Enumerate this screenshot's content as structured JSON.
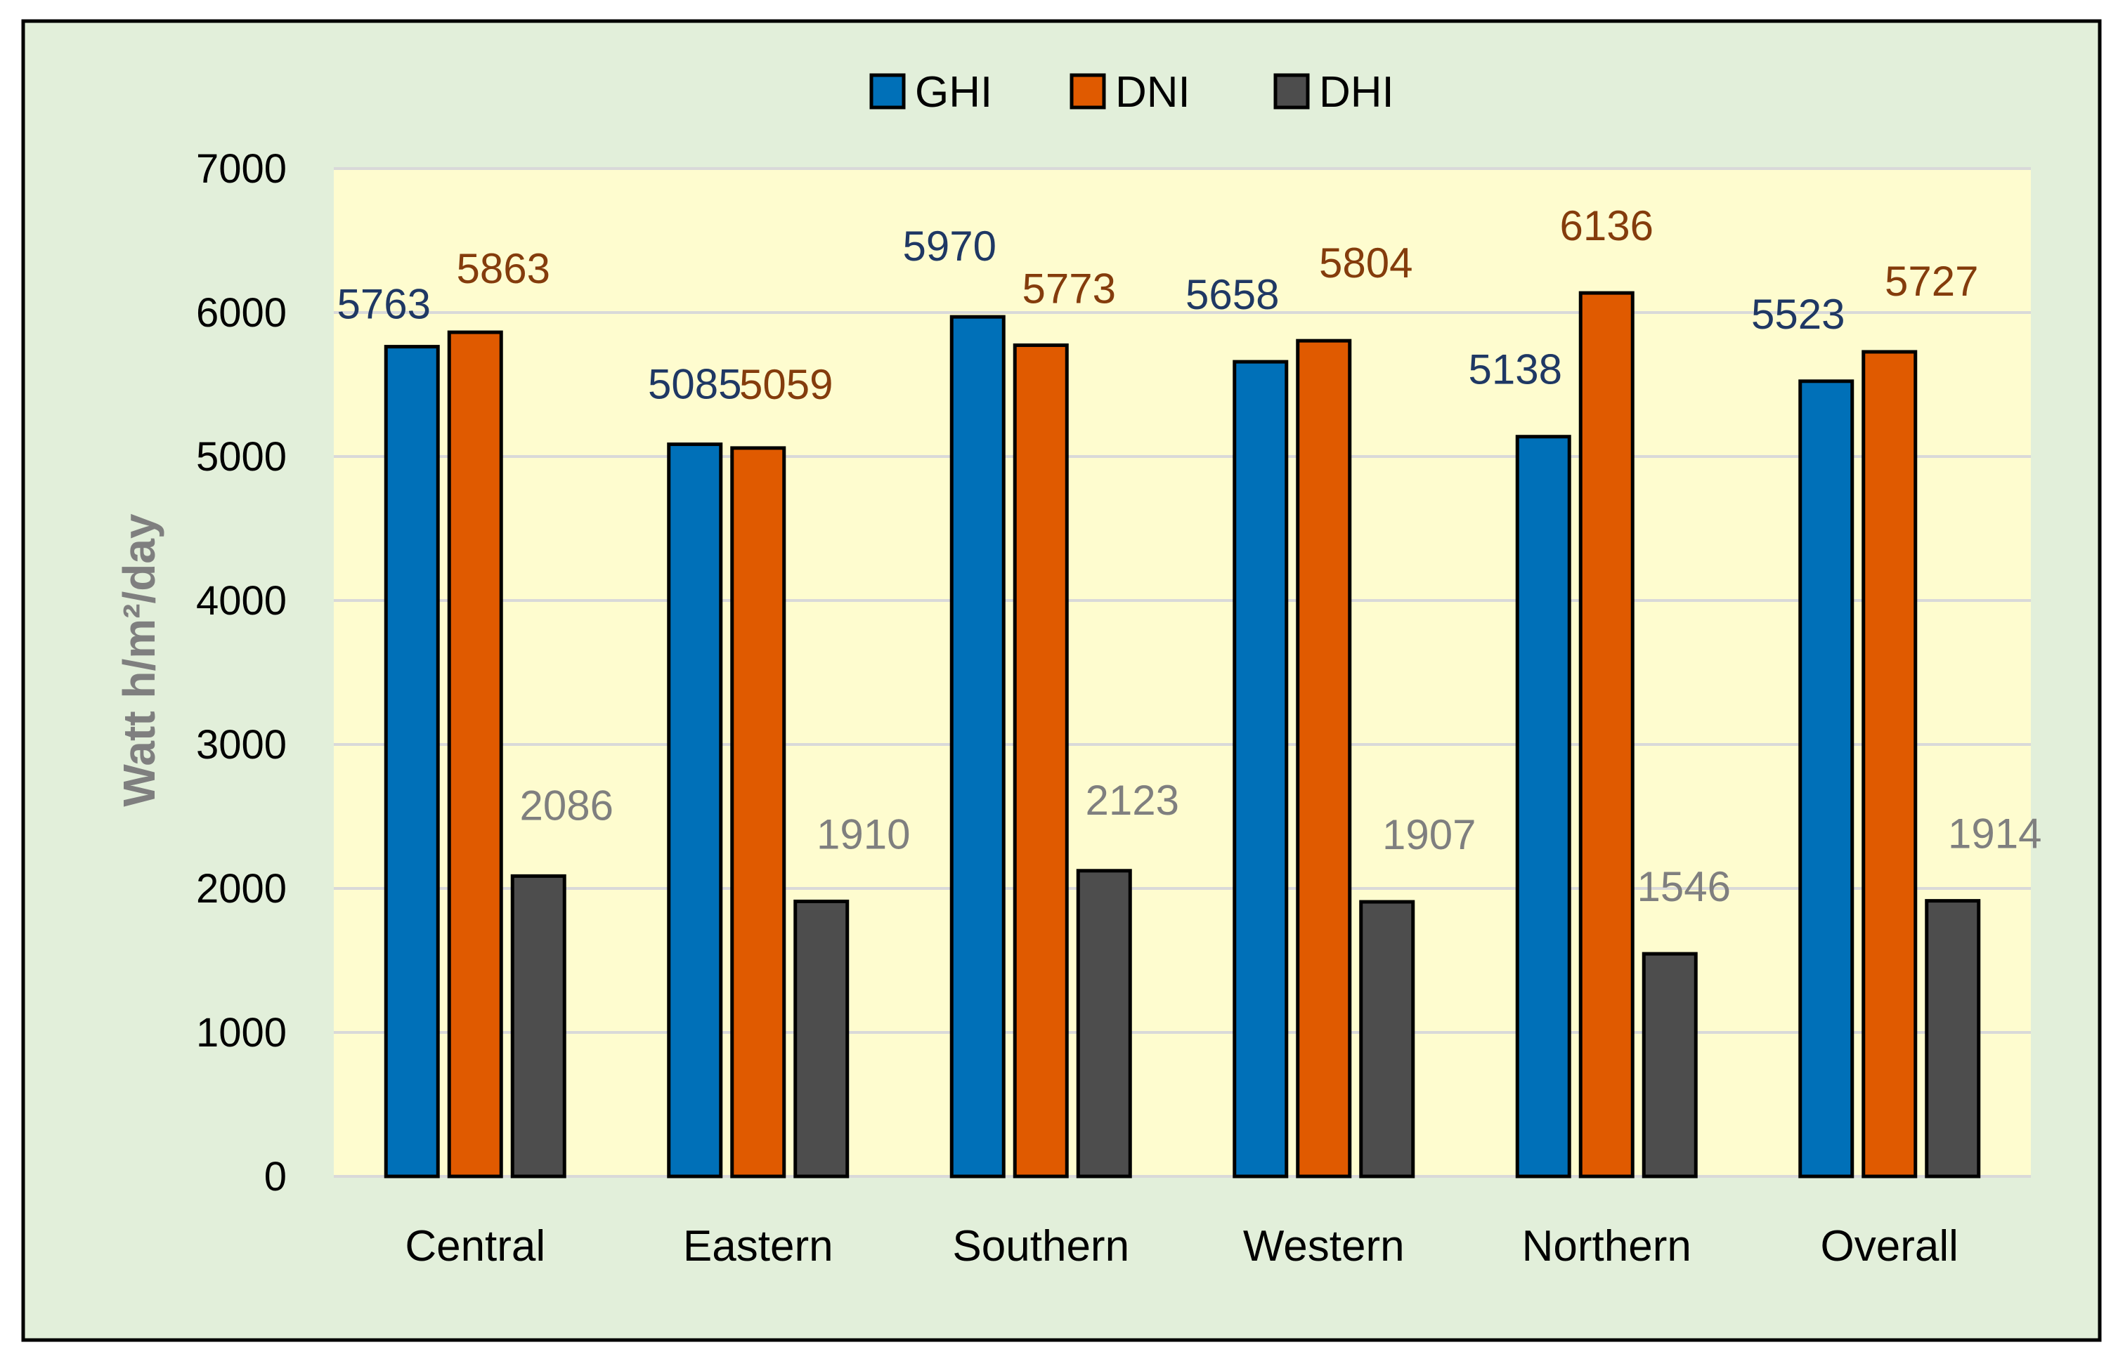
{
  "colors": {
    "page_bg": "#ffffff",
    "chart_bg": "#e2efda",
    "plot_bg": "#fefccf",
    "frame": "#000000",
    "gridline": "#d9d9d9"
  },
  "chart_data": {
    "type": "bar",
    "title": "",
    "xlabel": "",
    "ylabel": "Watt h/m²/day",
    "ylim": [
      0,
      7000
    ],
    "yticks": [
      0,
      1000,
      2000,
      3000,
      4000,
      5000,
      6000,
      7000
    ],
    "grid": true,
    "legend_position": "top-center",
    "categories": [
      "Central",
      "Eastern",
      "Southern",
      "Western",
      "Northern",
      "Overall"
    ],
    "series": [
      {
        "name": "GHI",
        "color": "#0070b8",
        "label_color": "#1f3864",
        "values": [
          5763,
          5085,
          5970,
          5658,
          5138,
          5523
        ]
      },
      {
        "name": "DNI",
        "color": "#e05a00",
        "label_color": "#843c0c",
        "values": [
          5863,
          5059,
          5773,
          5804,
          6136,
          5727
        ]
      },
      {
        "name": "DHI",
        "color": "#4d4d4d",
        "label_color": "#7f7f7f",
        "values": [
          2086,
          1910,
          2123,
          1907,
          1546,
          1914
        ]
      }
    ]
  }
}
